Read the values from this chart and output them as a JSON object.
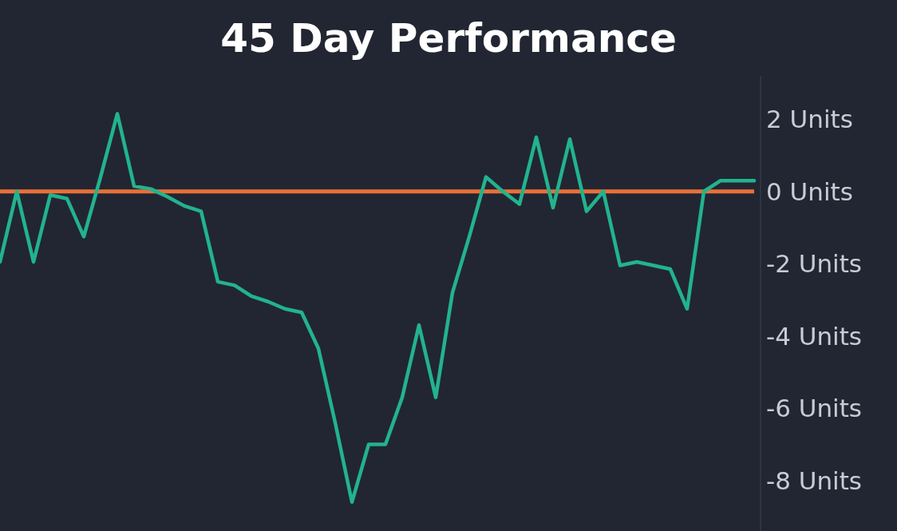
{
  "chart_data": {
    "type": "line",
    "title": "45 Day Performance",
    "categories": [
      null,
      null,
      null,
      null,
      null,
      null,
      null,
      null,
      null,
      null,
      null,
      null,
      null,
      null,
      null,
      null,
      null,
      null,
      null,
      null,
      null,
      null,
      null,
      null,
      null,
      null,
      null,
      null,
      null,
      null,
      null,
      null,
      null,
      null,
      null,
      null,
      null,
      null,
      null,
      null,
      null,
      null,
      null,
      null,
      null,
      null
    ],
    "series": [
      {
        "color": "#22b38e",
        "values": [
          -1.95,
          0,
          -1.95,
          -0.1,
          -0.2,
          -1.25,
          0.4,
          2.15,
          0.15,
          0.07,
          -0.15,
          -0.4,
          -0.55,
          -2.5,
          -2.6,
          -2.9,
          -3.05,
          -3.25,
          -3.35,
          -4.35,
          -6.4,
          -8.6,
          -7.0,
          -7.0,
          -5.7,
          -3.7,
          -5.7,
          -2.8,
          -1.25,
          0.4,
          0,
          -0.35,
          1.5,
          -0.45,
          1.45,
          -0.55,
          0,
          -2.05,
          -1.95,
          -2.05,
          -2.15,
          -3.25,
          0,
          0.3,
          0.3,
          0.3
        ]
      }
    ],
    "ylim": [
      -9.4,
      3.2
    ],
    "yticks": [
      {
        "value": 2,
        "label": "2 Units"
      },
      {
        "value": 0,
        "label": "0 Units"
      },
      {
        "value": -2,
        "label": "-2 Units"
      },
      {
        "value": -4,
        "label": "-4 Units"
      },
      {
        "value": -6,
        "label": "-6 Units"
      },
      {
        "value": -8,
        "label": "-8 Units"
      }
    ],
    "ref_lines": [
      {
        "axis": "y",
        "value": 0,
        "color": "#e8703a"
      }
    ],
    "grid": false,
    "marker": "none",
    "line_style": "solid"
  }
}
